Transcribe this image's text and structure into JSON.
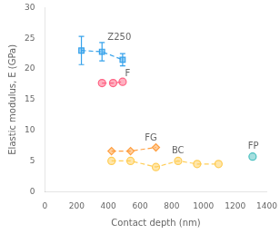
{
  "chart_data": {
    "type": "line",
    "xlabel": "Contact depth (nm)",
    "ylabel": "Elastic modulus, E (GPa)",
    "xlim": [
      0,
      1400
    ],
    "ylim": [
      0,
      30
    ],
    "xticks": [
      0,
      200,
      400,
      600,
      800,
      1000,
      1200,
      1400
    ],
    "yticks": [
      0,
      5,
      10,
      15,
      20,
      25,
      30
    ],
    "grid": false,
    "series": [
      {
        "x": [
          230,
          360,
          490
        ],
        "values": [
          23.0,
          22.8,
          21.5
        ],
        "yerr": [
          2.3,
          1.5,
          1.0
        ],
        "marker": "square",
        "line_style": "dashed"
      },
      {
        "x": [
          360,
          430,
          490
        ],
        "values": [
          17.7,
          17.7,
          17.9
        ],
        "marker": "circle",
        "line_style": "dashed"
      },
      {
        "x": [
          420,
          540,
          700
        ],
        "values": [
          6.6,
          6.6,
          7.2
        ],
        "marker": "diamond",
        "line_style": "dashed"
      },
      {
        "x": [
          420,
          540,
          700,
          840,
          960,
          1095
        ],
        "values": [
          5.0,
          5.0,
          4.0,
          5.0,
          4.5,
          4.5
        ],
        "marker": "circle",
        "line_style": "dashed"
      },
      {
        "x": [
          1310
        ],
        "values": [
          5.7
        ],
        "marker": "circle",
        "line_style": "dashed"
      }
    ],
    "annotations": [
      {
        "text": "Z250",
        "x": 395,
        "y": 24.8
      },
      {
        "text": "F",
        "x": 505,
        "y": 18.8
      },
      {
        "text": "FG",
        "x": 630,
        "y": 8.3
      },
      {
        "text": "BC",
        "x": 800,
        "y": 6.2
      },
      {
        "text": "FP",
        "x": 1280,
        "y": 7.0
      }
    ]
  }
}
